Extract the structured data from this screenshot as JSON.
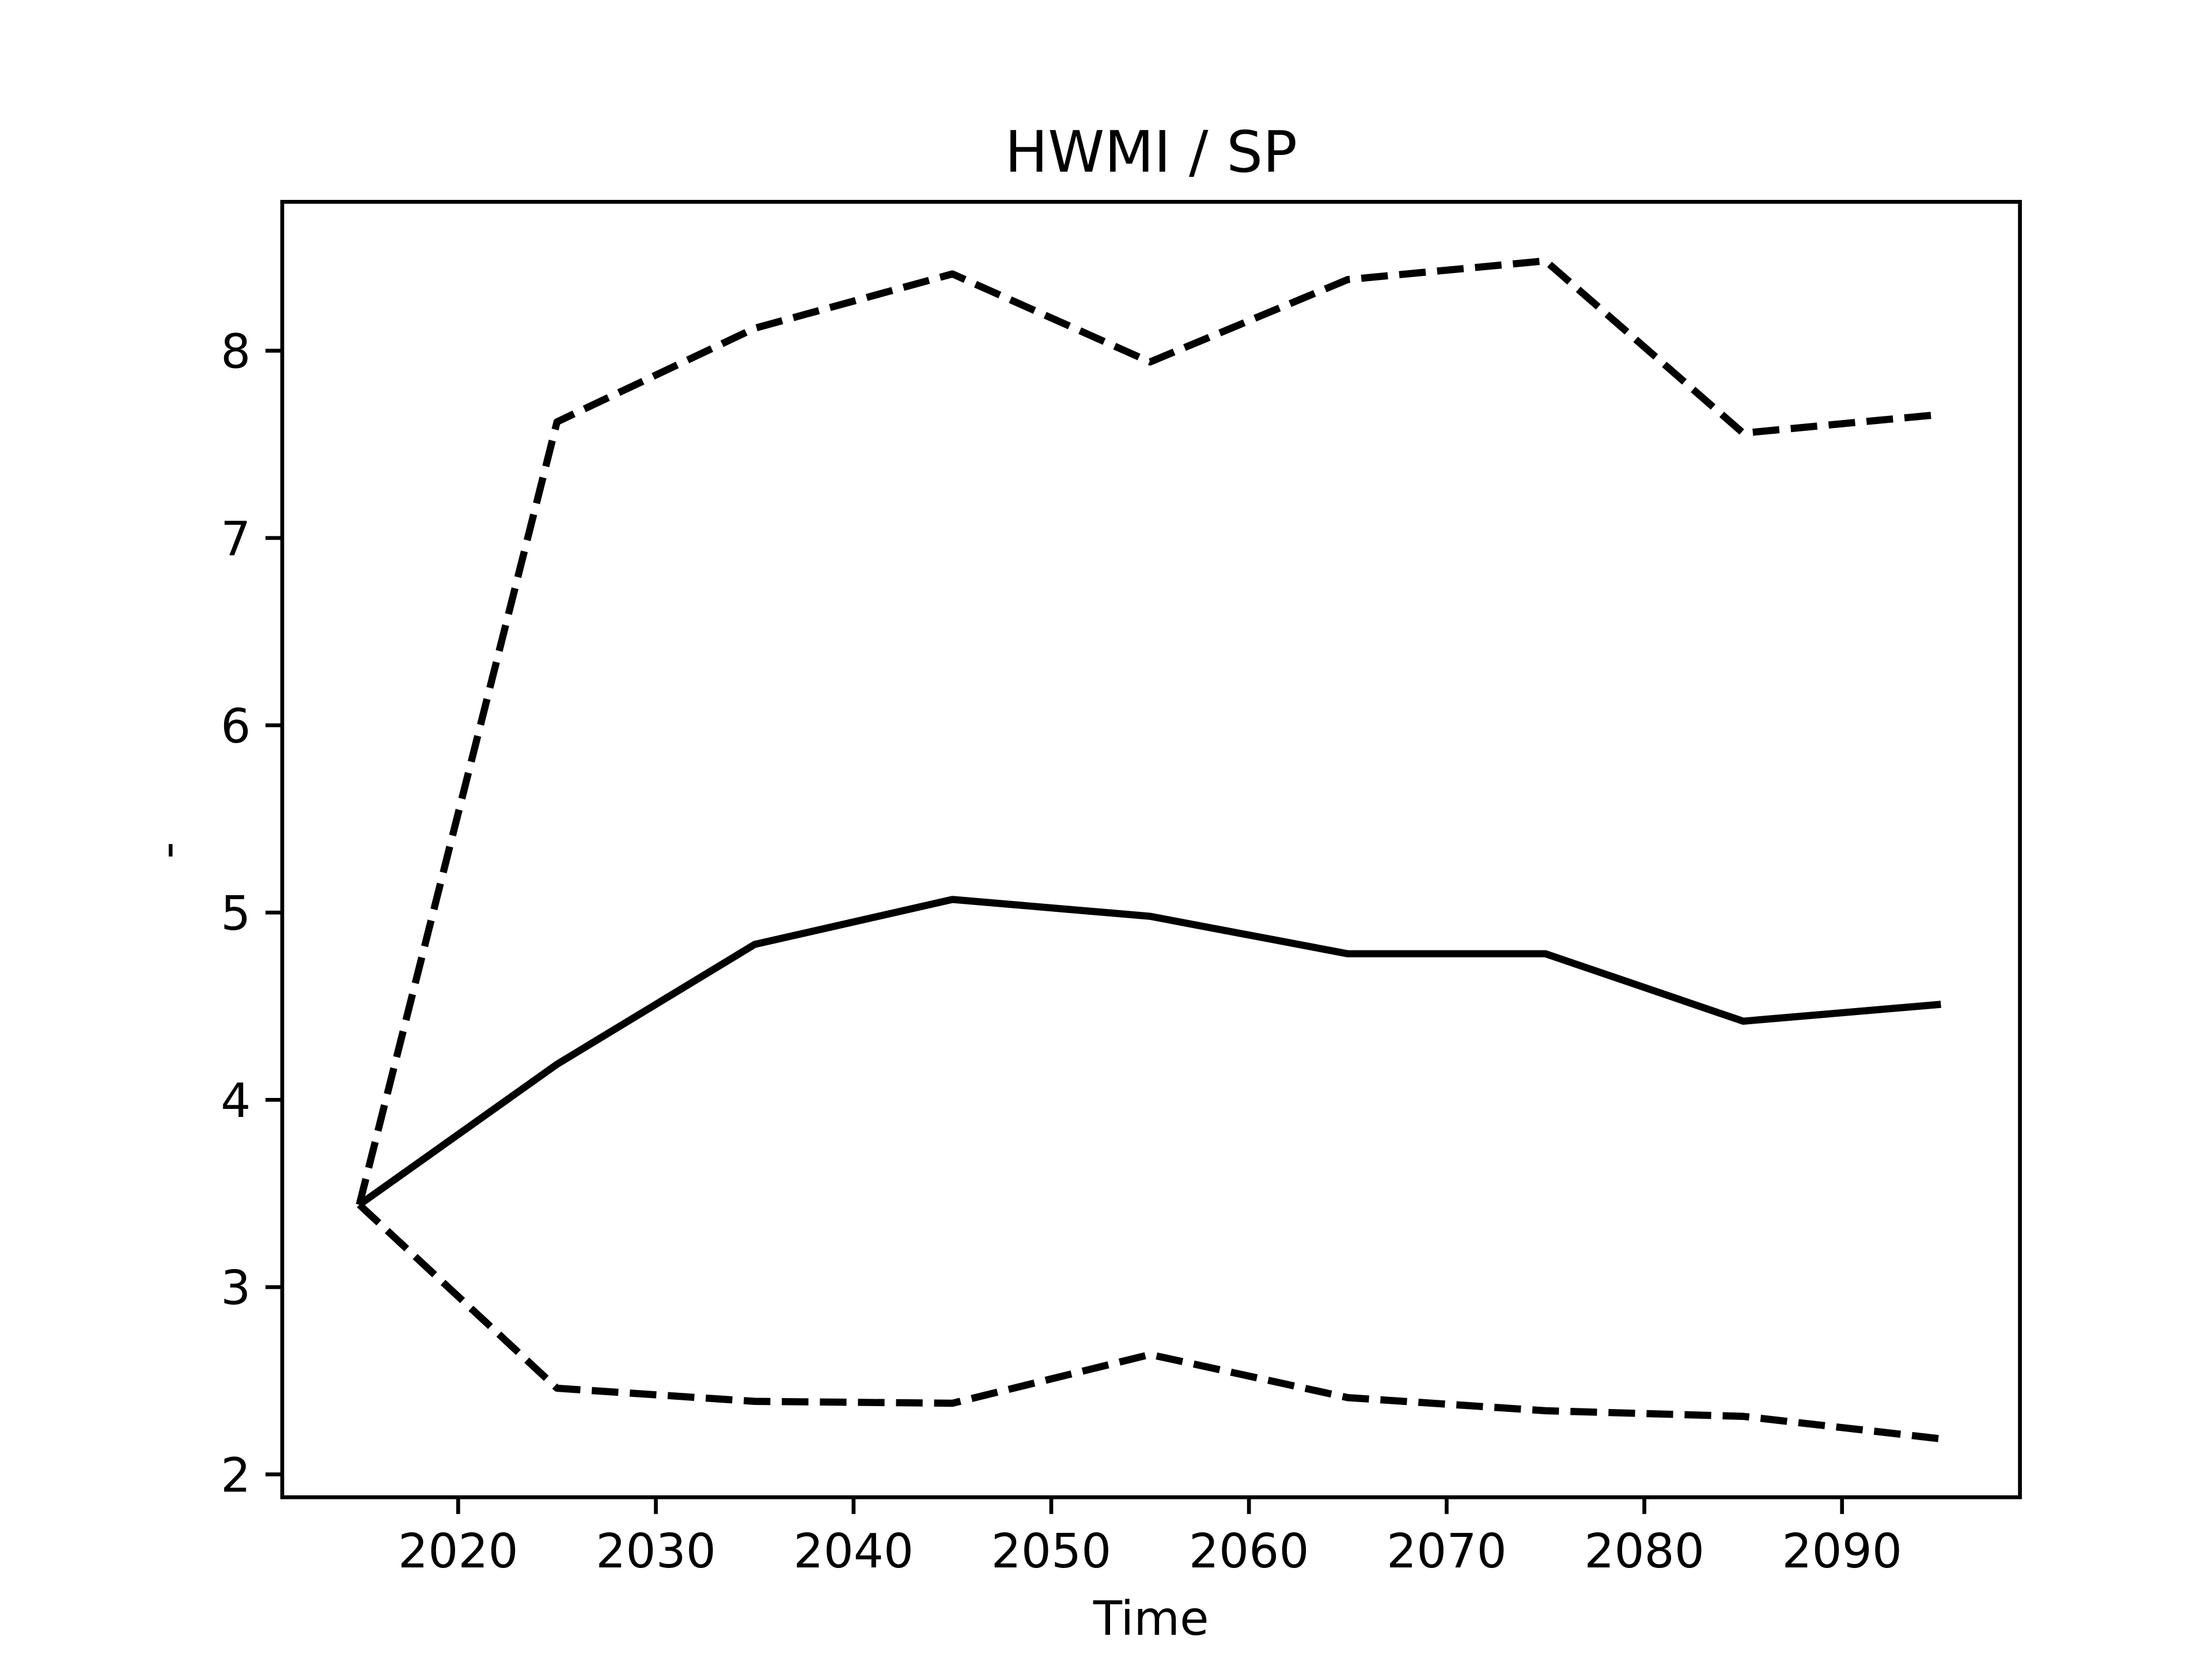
{
  "chart_data": {
    "type": "line",
    "title": "HWMI / SP",
    "xlabel": "Time",
    "ylabel": "-",
    "x": [
      2015,
      2025,
      2035,
      2045,
      2055,
      2065,
      2075,
      2085,
      2095
    ],
    "series": [
      {
        "color": "#000000",
        "linestyle": "solid",
        "values": [
          3.44,
          4.19,
          4.83,
          5.07,
          4.98,
          4.78,
          4.78,
          4.42,
          4.51
        ]
      },
      {
        "color": "#000000",
        "linestyle": "dashed",
        "values": [
          3.44,
          7.62,
          8.12,
          8.41,
          7.94,
          8.38,
          8.48,
          7.56,
          7.66
        ]
      },
      {
        "color": "#000000",
        "linestyle": "dashed",
        "values": [
          3.44,
          2.46,
          2.39,
          2.38,
          2.64,
          2.41,
          2.34,
          2.31,
          2.19
        ]
      }
    ],
    "xlim": [
      2011.1,
      2099.0
    ],
    "xticks": [
      2020,
      2030,
      2040,
      2050,
      2060,
      2070,
      2080,
      2090
    ],
    "ylim": [
      1.878,
      8.795
    ],
    "yticks": [
      2,
      3,
      4,
      5,
      6,
      7,
      8
    ],
    "grid": false
  }
}
